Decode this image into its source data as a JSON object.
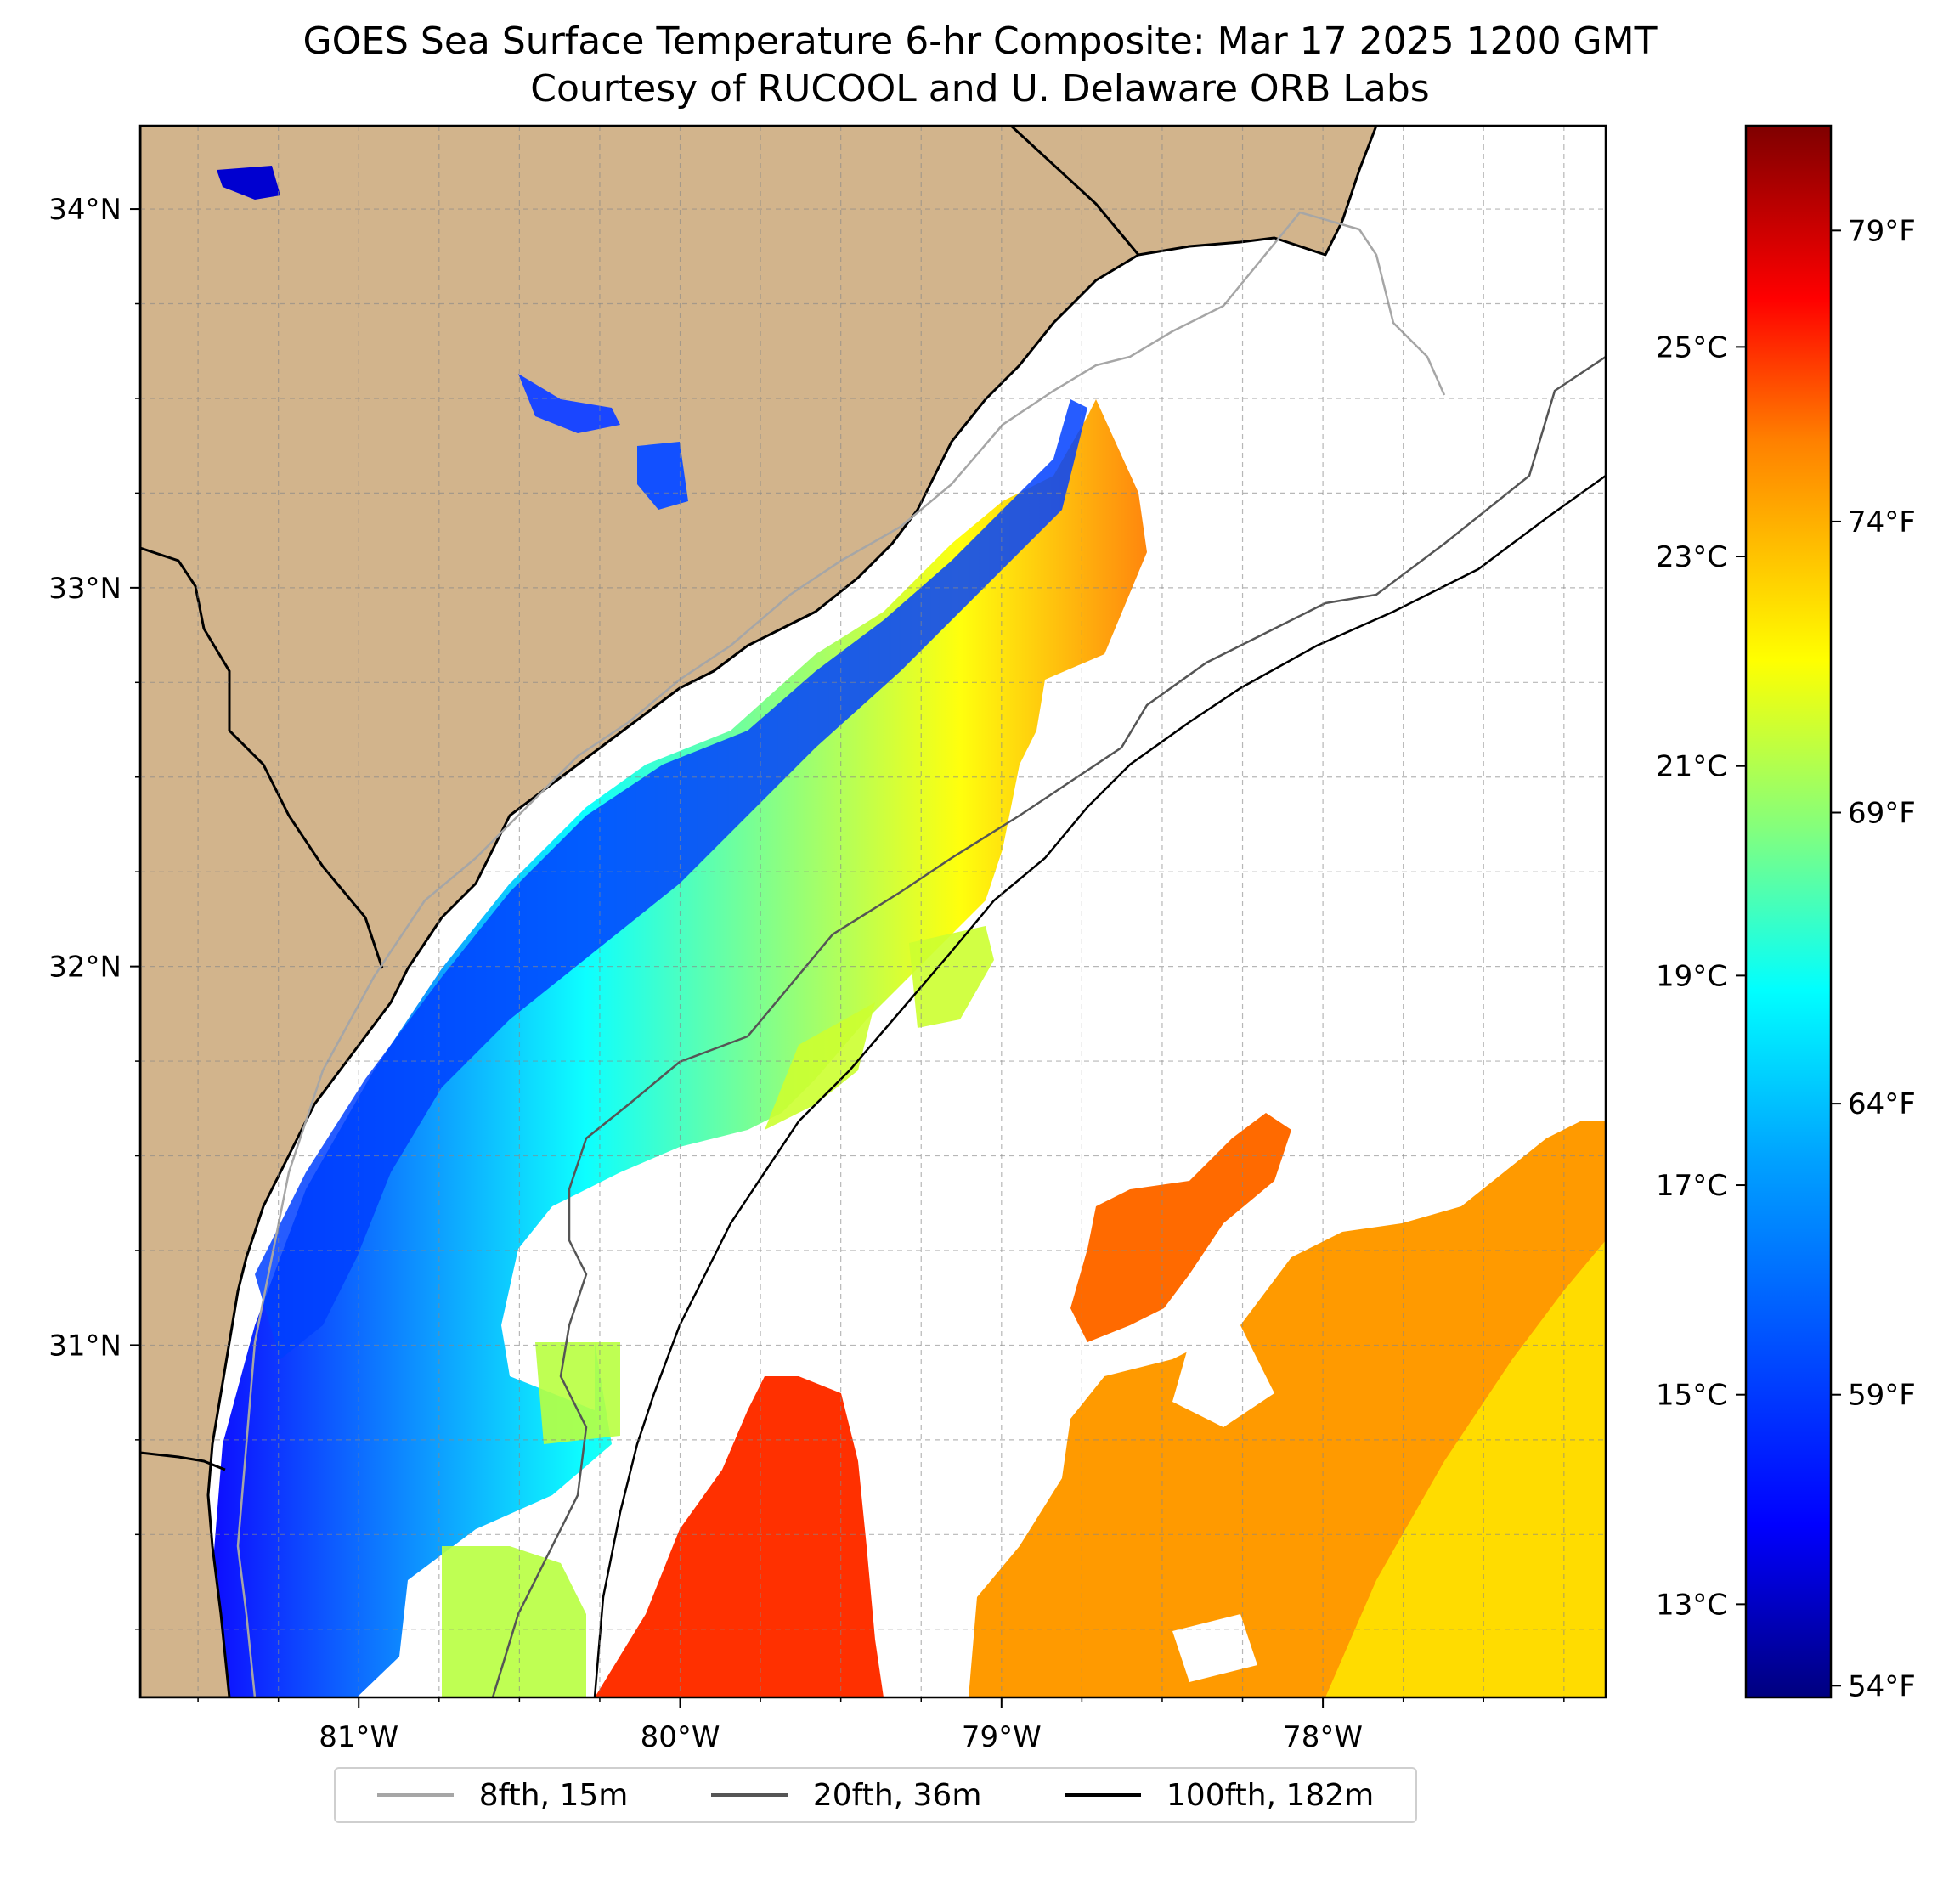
{
  "title": {
    "line1": "GOES Sea Surface Temperature 6-hr Composite: Mar 17 2025 1200 GMT",
    "line2": "Courtesy of RUCOOL and U. Delaware ORB Labs"
  },
  "map": {
    "lon_range": [
      -81.68,
      -77.12
    ],
    "lat_range": [
      30.07,
      34.22
    ],
    "lon_ticks": [
      -81,
      -80,
      -79,
      -78
    ],
    "lon_tick_labels": [
      "81°W",
      "80°W",
      "79°W",
      "78°W"
    ],
    "lat_ticks": [
      34,
      33,
      32,
      31
    ],
    "lat_tick_labels": [
      "34°N",
      "33°N",
      "32°N",
      "31°N"
    ],
    "gridlines": true,
    "land_color": "#d2b48c",
    "no_data_color": "#ffffff"
  },
  "colorbar": {
    "colormap": "jet",
    "celsius_ticks": [
      13,
      15,
      17,
      19,
      21,
      23,
      25
    ],
    "celsius_labels": [
      "13°C",
      "15°C",
      "17°C",
      "19°C",
      "21°C",
      "23°C",
      "25°C"
    ],
    "fahrenheit_ticks": [
      54,
      59,
      64,
      69,
      74,
      79
    ],
    "fahrenheit_labels": [
      "54°F",
      "59°F",
      "64°F",
      "69°F",
      "74°F",
      "79°F"
    ],
    "range_f": [
      53.8,
      80.8
    ]
  },
  "legend": {
    "items": [
      {
        "label": "8fth, 15m",
        "color": "#a6a6a6"
      },
      {
        "label": "20fth, 36m",
        "color": "#555555"
      },
      {
        "label": "100fth, 182m",
        "color": "#000000"
      }
    ]
  }
}
